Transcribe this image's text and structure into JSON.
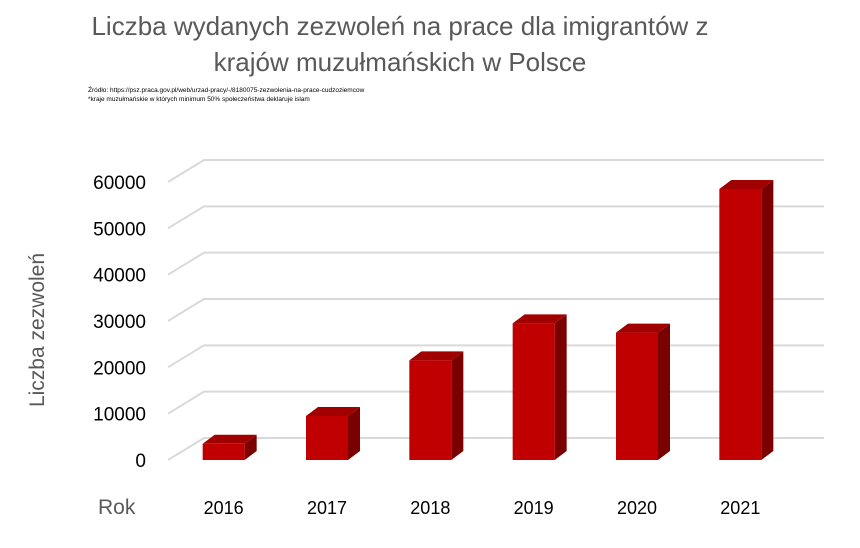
{
  "chart_data": {
    "type": "bar",
    "title": "Liczba wydanych zezwoleń na prace dla imigrantów z krajów muzułmańskich w Polsce",
    "source": "Źródło: https://psz.praca.gov.pl/web/urzad-pracy/-/8180075-zezwolenia-na-prace-cudzoziemcow",
    "footnote": "*kraje muzułmańskie w których minimum 50% społeczeństwa deklaruje islam",
    "xlabel": "Rok",
    "ylabel": "Liczba zezwoleń",
    "categories": [
      "2016",
      "2017",
      "2018",
      "2019",
      "2020",
      "2021"
    ],
    "values": [
      3500,
      9500,
      21500,
      29500,
      27500,
      58500
    ],
    "ylim": [
      0,
      60000
    ],
    "yticks": [
      "0",
      "10000",
      "20000",
      "30000",
      "40000",
      "50000",
      "60000"
    ],
    "style": "3d-column",
    "grid": true,
    "legend": "none",
    "colors": {
      "bar_front": "#c00000",
      "bar_top": "#a00000",
      "bar_side": "#7a0000",
      "grid": "#d9d9d9"
    }
  }
}
